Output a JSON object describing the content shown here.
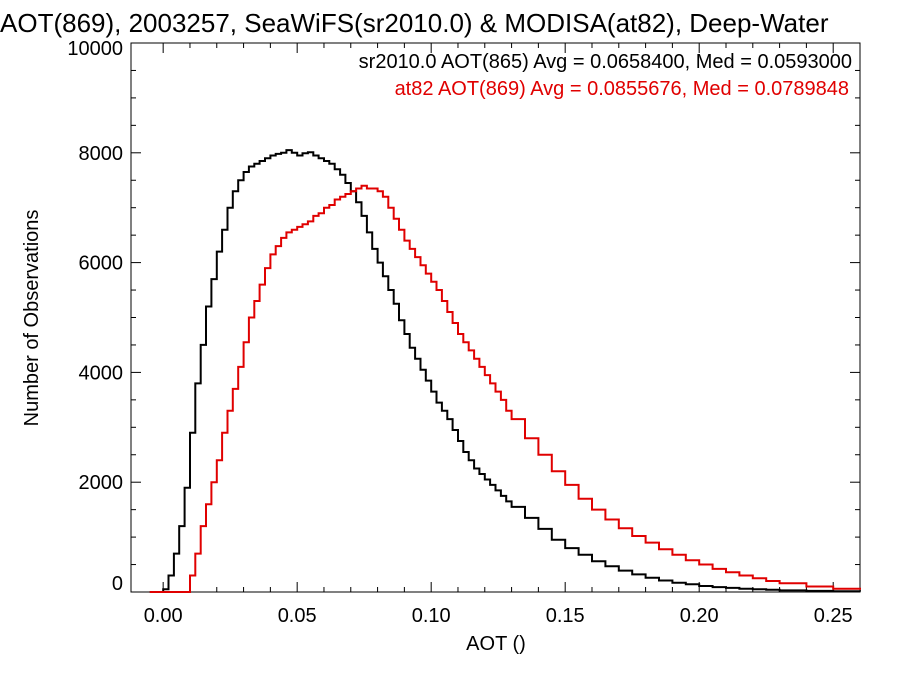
{
  "chart_data": {
    "type": "line",
    "title": "AOT(869), 2003257, SeaWiFS(sr2010.0) & MODISA(at82), Deep-Water",
    "xlabel": "AOT ()",
    "ylabel": "Number of Observations",
    "xlim": [
      -0.012,
      0.26
    ],
    "ylim": [
      0,
      10000
    ],
    "xticks": [
      0.0,
      0.05,
      0.1,
      0.15,
      0.2,
      0.25
    ],
    "xtick_labels": [
      "0.00",
      "0.05",
      "0.10",
      "0.15",
      "0.20",
      "0.25"
    ],
    "yticks": [
      0,
      2000,
      4000,
      6000,
      8000,
      10000
    ],
    "ytick_labels": [
      "0",
      "2000",
      "4000",
      "6000",
      "8000",
      "10000"
    ],
    "grid": false,
    "annotations": [
      {
        "text": "sr2010.0 AOT(865) Avg = 0.0658400, Med = 0.0593000",
        "color": "#000000"
      },
      {
        "text": "at82 AOT(869) Avg = 0.0855676, Med = 0.0789848",
        "color": "#e00000"
      }
    ],
    "series": [
      {
        "color": "#000000",
        "x": [
          -0.005,
          0.0,
          0.002,
          0.004,
          0.006,
          0.008,
          0.01,
          0.012,
          0.014,
          0.016,
          0.018,
          0.02,
          0.022,
          0.024,
          0.026,
          0.028,
          0.03,
          0.032,
          0.034,
          0.036,
          0.038,
          0.04,
          0.042,
          0.044,
          0.046,
          0.048,
          0.05,
          0.052,
          0.054,
          0.056,
          0.058,
          0.06,
          0.062,
          0.064,
          0.066,
          0.068,
          0.07,
          0.072,
          0.074,
          0.076,
          0.078,
          0.08,
          0.082,
          0.084,
          0.086,
          0.088,
          0.09,
          0.092,
          0.094,
          0.096,
          0.098,
          0.1,
          0.102,
          0.104,
          0.106,
          0.108,
          0.11,
          0.112,
          0.114,
          0.116,
          0.118,
          0.12,
          0.122,
          0.124,
          0.126,
          0.128,
          0.13,
          0.135,
          0.14,
          0.145,
          0.15,
          0.155,
          0.16,
          0.165,
          0.17,
          0.175,
          0.18,
          0.185,
          0.19,
          0.195,
          0.2,
          0.205,
          0.21,
          0.215,
          0.22,
          0.225,
          0.23,
          0.24,
          0.25,
          0.26
        ],
        "y": [
          0,
          50,
          300,
          700,
          1200,
          1900,
          2900,
          3800,
          4500,
          5200,
          5700,
          6200,
          6600,
          7000,
          7300,
          7500,
          7650,
          7750,
          7800,
          7850,
          7900,
          7950,
          7980,
          8000,
          8050,
          8000,
          7950,
          7990,
          8010,
          7950,
          7900,
          7850,
          7800,
          7700,
          7600,
          7450,
          7300,
          7100,
          6850,
          6550,
          6250,
          6000,
          5750,
          5500,
          5250,
          4950,
          4700,
          4450,
          4250,
          4050,
          3850,
          3650,
          3450,
          3300,
          3150,
          2950,
          2750,
          2550,
          2400,
          2250,
          2150,
          2050,
          1950,
          1850,
          1750,
          1650,
          1550,
          1350,
          1150,
          950,
          800,
          680,
          560,
          470,
          390,
          320,
          260,
          210,
          170,
          140,
          110,
          90,
          75,
          60,
          50,
          40,
          30,
          20,
          15,
          10
        ]
      },
      {
        "color": "#e00000",
        "x": [
          -0.005,
          0.008,
          0.01,
          0.012,
          0.014,
          0.016,
          0.018,
          0.02,
          0.022,
          0.024,
          0.026,
          0.028,
          0.03,
          0.032,
          0.034,
          0.036,
          0.038,
          0.04,
          0.042,
          0.044,
          0.046,
          0.048,
          0.05,
          0.052,
          0.054,
          0.056,
          0.058,
          0.06,
          0.062,
          0.064,
          0.066,
          0.068,
          0.07,
          0.072,
          0.074,
          0.076,
          0.078,
          0.08,
          0.082,
          0.084,
          0.086,
          0.088,
          0.09,
          0.092,
          0.094,
          0.096,
          0.098,
          0.1,
          0.102,
          0.104,
          0.106,
          0.108,
          0.11,
          0.112,
          0.114,
          0.116,
          0.118,
          0.12,
          0.122,
          0.124,
          0.126,
          0.128,
          0.13,
          0.135,
          0.14,
          0.145,
          0.15,
          0.155,
          0.16,
          0.165,
          0.17,
          0.175,
          0.18,
          0.185,
          0.19,
          0.195,
          0.2,
          0.205,
          0.21,
          0.215,
          0.22,
          0.225,
          0.23,
          0.24,
          0.25,
          0.26
        ],
        "y": [
          0,
          0,
          300,
          700,
          1200,
          1600,
          2000,
          2400,
          2900,
          3300,
          3700,
          4100,
          4550,
          5000,
          5300,
          5600,
          5900,
          6150,
          6300,
          6450,
          6550,
          6600,
          6650,
          6700,
          6750,
          6850,
          6900,
          7000,
          7050,
          7150,
          7200,
          7250,
          7300,
          7350,
          7400,
          7350,
          7350,
          7300,
          7200,
          7000,
          6800,
          6600,
          6400,
          6250,
          6100,
          5950,
          5800,
          5650,
          5500,
          5300,
          5100,
          4900,
          4700,
          4550,
          4400,
          4250,
          4100,
          3950,
          3800,
          3650,
          3500,
          3300,
          3150,
          2800,
          2500,
          2200,
          1950,
          1700,
          1500,
          1320,
          1160,
          1020,
          900,
          780,
          680,
          580,
          500,
          420,
          360,
          300,
          250,
          200,
          160,
          100,
          60,
          40
        ]
      }
    ]
  }
}
